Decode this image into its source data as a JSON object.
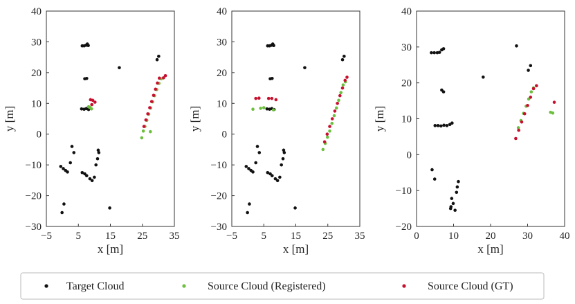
{
  "colors": {
    "target": "#111111",
    "registered": "#6cbf3f",
    "gt": "#c8102e",
    "frame": "#333333"
  },
  "legend": {
    "position": "bottom-center",
    "entries": [
      {
        "key": "target",
        "label": "Target Cloud"
      },
      {
        "key": "registered",
        "label": "Source Cloud (Registered)"
      },
      {
        "key": "gt",
        "label": "Source Cloud (GT)"
      }
    ]
  },
  "chart_data": [
    {
      "type": "scatter",
      "xlabel": "x [m]",
      "ylabel": "y [m]",
      "xlim": [
        -5,
        35
      ],
      "ylim": [
        -30,
        40
      ],
      "xticks": [
        -5,
        5,
        15,
        25,
        35
      ],
      "yticks": [
        -30,
        -20,
        -10,
        0,
        10,
        20,
        30,
        40
      ],
      "grid": false,
      "series": [
        {
          "key": "target",
          "points": [
            [
              6.2,
              28.7
            ],
            [
              6.8,
              28.7
            ],
            [
              7.4,
              28.9
            ],
            [
              7.8,
              29.3
            ],
            [
              8.1,
              28.8
            ],
            [
              7.0,
              18.0
            ],
            [
              7.6,
              18.1
            ],
            [
              6.0,
              8.2
            ],
            [
              6.8,
              8.1
            ],
            [
              7.5,
              8.3
            ],
            [
              8.2,
              8.0
            ],
            [
              17.8,
              21.6
            ],
            [
              29.6,
              24.2
            ],
            [
              30.1,
              25.3
            ],
            [
              -0.5,
              -10.5
            ],
            [
              0.3,
              -11.2
            ],
            [
              1.0,
              -11.8
            ],
            [
              1.6,
              -12.3
            ],
            [
              3.0,
              -4.0
            ],
            [
              3.6,
              -6.0
            ],
            [
              2.5,
              -9.3
            ],
            [
              6.2,
              -12.5
            ],
            [
              7.0,
              -12.9
            ],
            [
              7.6,
              -13.5
            ],
            [
              8.6,
              -14.5
            ],
            [
              9.3,
              -15.1
            ],
            [
              10.0,
              -14.0
            ],
            [
              10.5,
              -10.0
            ],
            [
              11.0,
              -8.0
            ],
            [
              11.4,
              -6.0
            ],
            [
              11.2,
              -5.2
            ],
            [
              0.5,
              -22.7
            ],
            [
              -0.1,
              -25.5
            ],
            [
              14.8,
              -24.0
            ]
          ]
        },
        {
          "key": "registered",
          "points": [
            [
              8.6,
              8.7
            ],
            [
              9.1,
              8.2
            ],
            [
              8.2,
              8.9
            ],
            [
              25.3,
              1.0
            ],
            [
              25.8,
              2.5
            ],
            [
              26.4,
              4.5
            ],
            [
              27.0,
              6.5
            ],
            [
              27.6,
              8.5
            ],
            [
              28.2,
              10.5
            ],
            [
              28.8,
              12.5
            ],
            [
              29.5,
              14.5
            ],
            [
              30.2,
              16.5
            ],
            [
              30.9,
              18.0
            ],
            [
              27.5,
              0.8
            ],
            [
              24.8,
              -1.2
            ]
          ]
        },
        {
          "key": "gt",
          "points": [
            [
              8.8,
              11.2
            ],
            [
              9.5,
              11.0
            ],
            [
              10.2,
              10.4
            ],
            [
              9.2,
              9.6
            ],
            [
              25.5,
              2.5
            ],
            [
              26.1,
              4.6
            ],
            [
              26.7,
              6.6
            ],
            [
              27.3,
              8.6
            ],
            [
              27.9,
              10.6
            ],
            [
              28.5,
              12.6
            ],
            [
              29.1,
              14.6
            ],
            [
              29.7,
              16.6
            ],
            [
              30.3,
              18.2
            ],
            [
              31.6,
              18.3
            ],
            [
              32.2,
              19.0
            ]
          ]
        }
      ]
    },
    {
      "type": "scatter",
      "xlabel": "x [m]",
      "ylabel": "y [m]",
      "xlim": [
        -5,
        35
      ],
      "ylim": [
        -30,
        40
      ],
      "xticks": [
        -5,
        5,
        15,
        25,
        35
      ],
      "yticks": [
        -30,
        -20,
        -10,
        0,
        10,
        20,
        30,
        40
      ],
      "grid": false,
      "series": [
        {
          "key": "target",
          "points": [
            [
              6.2,
              28.7
            ],
            [
              6.8,
              28.7
            ],
            [
              7.4,
              28.9
            ],
            [
              7.8,
              29.3
            ],
            [
              8.1,
              28.8
            ],
            [
              7.0,
              18.0
            ],
            [
              7.6,
              18.1
            ],
            [
              6.0,
              8.2
            ],
            [
              6.8,
              8.1
            ],
            [
              7.5,
              8.3
            ],
            [
              8.2,
              8.0
            ],
            [
              17.8,
              21.6
            ],
            [
              29.6,
              24.2
            ],
            [
              30.1,
              25.3
            ],
            [
              -0.5,
              -10.5
            ],
            [
              0.3,
              -11.2
            ],
            [
              1.0,
              -11.8
            ],
            [
              1.6,
              -12.3
            ],
            [
              3.0,
              -4.0
            ],
            [
              3.6,
              -6.0
            ],
            [
              2.5,
              -9.3
            ],
            [
              6.2,
              -12.5
            ],
            [
              7.0,
              -12.9
            ],
            [
              7.6,
              -13.5
            ],
            [
              8.6,
              -14.5
            ],
            [
              9.3,
              -15.1
            ],
            [
              10.0,
              -14.0
            ],
            [
              10.5,
              -10.0
            ],
            [
              11.0,
              -8.0
            ],
            [
              11.4,
              -6.0
            ],
            [
              11.2,
              -5.2
            ],
            [
              0.5,
              -22.7
            ],
            [
              -0.1,
              -25.5
            ],
            [
              14.8,
              -24.0
            ]
          ]
        },
        {
          "key": "registered",
          "points": [
            [
              1.6,
              8.1
            ],
            [
              4.0,
              8.4
            ],
            [
              5.0,
              8.6
            ],
            [
              8.0,
              7.9
            ],
            [
              23.5,
              -5.0
            ],
            [
              24.2,
              -3.0
            ],
            [
              24.9,
              -1.0
            ],
            [
              25.6,
              1.0
            ],
            [
              26.3,
              3.5
            ],
            [
              27.0,
              6.0
            ],
            [
              27.7,
              8.5
            ],
            [
              28.4,
              11.0
            ],
            [
              29.1,
              13.5
            ],
            [
              29.8,
              16.0
            ],
            [
              30.5,
              17.0
            ]
          ]
        },
        {
          "key": "gt",
          "points": [
            [
              2.5,
              11.6
            ],
            [
              3.5,
              11.7
            ],
            [
              6.5,
              11.6
            ],
            [
              7.5,
              11.6
            ],
            [
              8.8,
              11.2
            ],
            [
              24.0,
              -2.5
            ],
            [
              24.8,
              0.0
            ],
            [
              25.6,
              2.5
            ],
            [
              26.4,
              5.0
            ],
            [
              27.2,
              7.5
            ],
            [
              28.0,
              10.0
            ],
            [
              28.8,
              12.5
            ],
            [
              29.6,
              15.0
            ],
            [
              30.4,
              17.5
            ],
            [
              31.0,
              18.5
            ]
          ]
        }
      ]
    },
    {
      "type": "scatter",
      "xlabel": "x [m]",
      "ylabel": "y [m]",
      "xlim": [
        0,
        40
      ],
      "ylim": [
        -20,
        40
      ],
      "xticks": [
        0,
        10,
        20,
        30,
        40
      ],
      "yticks": [
        -20,
        -10,
        0,
        10,
        20,
        30,
        40
      ],
      "grid": false,
      "series": [
        {
          "key": "target",
          "points": [
            [
              4.0,
              28.4
            ],
            [
              4.8,
              28.4
            ],
            [
              5.6,
              28.4
            ],
            [
              6.2,
              28.5
            ],
            [
              6.8,
              29.2
            ],
            [
              7.3,
              29.5
            ],
            [
              6.8,
              18.0
            ],
            [
              7.3,
              17.5
            ],
            [
              5.0,
              8.1
            ],
            [
              5.8,
              8.1
            ],
            [
              6.6,
              8.0
            ],
            [
              7.4,
              8.2
            ],
            [
              8.2,
              8.1
            ],
            [
              9.0,
              8.4
            ],
            [
              9.6,
              8.8
            ],
            [
              18.0,
              21.6
            ],
            [
              27.0,
              30.3
            ],
            [
              30.2,
              23.5
            ],
            [
              30.8,
              24.8
            ],
            [
              4.2,
              -4.2
            ],
            [
              4.9,
              -6.8
            ],
            [
              9.5,
              -12.2
            ],
            [
              9.9,
              -13.6
            ],
            [
              9.3,
              -14.5
            ],
            [
              9.2,
              -15.0
            ],
            [
              10.4,
              -15.5
            ],
            [
              10.8,
              -10.5
            ],
            [
              11.0,
              -9.0
            ],
            [
              11.3,
              -7.5
            ]
          ]
        },
        {
          "key": "registered",
          "points": [
            [
              36.2,
              11.8
            ],
            [
              36.8,
              11.6
            ],
            [
              27.5,
              7.5
            ],
            [
              28.2,
              9.5
            ],
            [
              28.9,
              11.5
            ],
            [
              29.6,
              13.5
            ],
            [
              30.3,
              15.5
            ],
            [
              31.0,
              17.5
            ],
            [
              31.6,
              18.6
            ]
          ]
        },
        {
          "key": "gt",
          "points": [
            [
              26.8,
              4.5
            ],
            [
              27.6,
              6.8
            ],
            [
              28.4,
              9.1
            ],
            [
              29.2,
              11.4
            ],
            [
              30.0,
              13.7
            ],
            [
              30.8,
              16.0
            ],
            [
              31.6,
              18.4
            ],
            [
              32.4,
              19.2
            ],
            [
              37.2,
              14.6
            ]
          ]
        }
      ]
    }
  ]
}
